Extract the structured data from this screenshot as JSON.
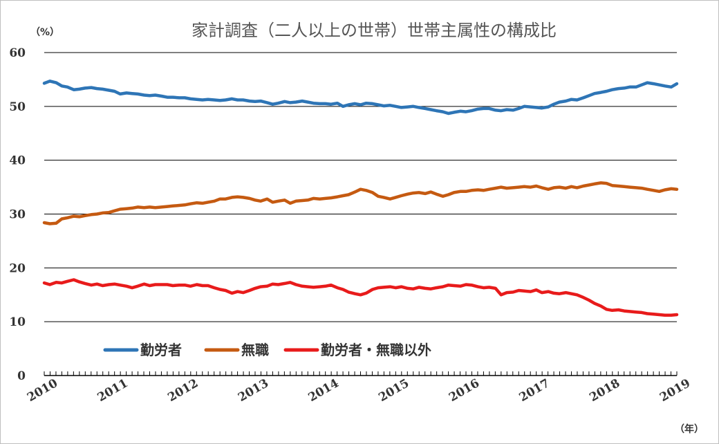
{
  "chart_data": {
    "type": "line",
    "title": "家計調査（二人以上の世帯）世帯主属性の構成比",
    "ylabel": "（%）",
    "xlabel": "（年）",
    "ylim": [
      0,
      60
    ],
    "yticks": [
      "0",
      "10",
      "20",
      "30",
      "40",
      "50",
      "60"
    ],
    "xlim": [
      2010,
      2019
    ],
    "xticks": [
      "2010",
      "2011",
      "2012",
      "2013",
      "2014",
      "2015",
      "2016",
      "2017",
      "2018",
      "2019"
    ],
    "grid": true,
    "legend_position": "bottom-left",
    "series": [
      {
        "name": "勤労者",
        "color": "#2E75B6",
        "x": [
          2010.0,
          2010.08,
          2010.17,
          2010.25,
          2010.33,
          2010.42,
          2010.5,
          2010.58,
          2010.67,
          2010.75,
          2010.83,
          2010.92,
          2011.0,
          2011.08,
          2011.17,
          2011.25,
          2011.33,
          2011.42,
          2011.5,
          2011.58,
          2011.67,
          2011.75,
          2011.83,
          2011.92,
          2012.0,
          2012.08,
          2012.17,
          2012.25,
          2012.33,
          2012.42,
          2012.5,
          2012.58,
          2012.67,
          2012.75,
          2012.83,
          2012.92,
          2013.0,
          2013.08,
          2013.17,
          2013.25,
          2013.33,
          2013.42,
          2013.5,
          2013.58,
          2013.67,
          2013.75,
          2013.83,
          2013.92,
          2014.0,
          2014.08,
          2014.17,
          2014.25,
          2014.33,
          2014.42,
          2014.5,
          2014.58,
          2014.67,
          2014.75,
          2014.83,
          2014.92,
          2015.0,
          2015.08,
          2015.17,
          2015.25,
          2015.33,
          2015.42,
          2015.5,
          2015.58,
          2015.67,
          2015.75,
          2015.83,
          2015.92,
          2016.0,
          2016.08,
          2016.17,
          2016.25,
          2016.33,
          2016.42,
          2016.5,
          2016.58,
          2016.67,
          2016.75,
          2016.83,
          2016.92,
          2017.0,
          2017.08,
          2017.17,
          2017.25,
          2017.33,
          2017.42,
          2017.5,
          2017.58,
          2017.67,
          2017.75,
          2017.83,
          2017.92,
          2018.0,
          2018.08,
          2018.17,
          2018.25,
          2018.33,
          2018.42,
          2018.5,
          2018.58,
          2018.67,
          2018.75,
          2018.83,
          2018.92,
          2019.0
        ],
        "values": [
          54.3,
          54.7,
          54.4,
          53.8,
          53.6,
          53.1,
          53.2,
          53.4,
          53.5,
          53.3,
          53.2,
          53.0,
          52.8,
          52.3,
          52.5,
          52.4,
          52.3,
          52.1,
          52.0,
          52.1,
          51.9,
          51.7,
          51.7,
          51.6,
          51.6,
          51.4,
          51.3,
          51.2,
          51.3,
          51.2,
          51.1,
          51.2,
          51.4,
          51.2,
          51.2,
          51.0,
          50.9,
          51.0,
          50.7,
          50.4,
          50.6,
          50.9,
          50.7,
          50.8,
          51.0,
          50.8,
          50.6,
          50.5,
          50.5,
          50.4,
          50.6,
          50.0,
          50.3,
          50.5,
          50.3,
          50.6,
          50.5,
          50.3,
          50.1,
          50.2,
          50.0,
          49.8,
          49.9,
          50.0,
          49.8,
          49.6,
          49.4,
          49.2,
          49.0,
          48.7,
          48.9,
          49.1,
          49.0,
          49.2,
          49.5,
          49.6,
          49.6,
          49.3,
          49.2,
          49.4,
          49.3,
          49.6,
          50.0,
          49.9,
          49.8,
          49.7,
          49.9,
          50.4,
          50.8,
          51.0,
          51.3,
          51.2,
          51.6,
          52.0,
          52.4,
          52.6,
          52.8,
          53.1,
          53.3,
          53.4,
          53.6,
          53.6,
          54.0,
          54.4,
          54.2,
          54.0,
          53.8,
          53.6,
          54.2
        ]
      },
      {
        "name": "無職",
        "color": "#C55A11",
        "x": [
          2010.0,
          2010.08,
          2010.17,
          2010.25,
          2010.33,
          2010.42,
          2010.5,
          2010.58,
          2010.67,
          2010.75,
          2010.83,
          2010.92,
          2011.0,
          2011.08,
          2011.17,
          2011.25,
          2011.33,
          2011.42,
          2011.5,
          2011.58,
          2011.67,
          2011.75,
          2011.83,
          2011.92,
          2012.0,
          2012.08,
          2012.17,
          2012.25,
          2012.33,
          2012.42,
          2012.5,
          2012.58,
          2012.67,
          2012.75,
          2012.83,
          2012.92,
          2013.0,
          2013.08,
          2013.17,
          2013.25,
          2013.33,
          2013.42,
          2013.5,
          2013.58,
          2013.67,
          2013.75,
          2013.83,
          2013.92,
          2014.0,
          2014.08,
          2014.17,
          2014.25,
          2014.33,
          2014.42,
          2014.5,
          2014.58,
          2014.67,
          2014.75,
          2014.83,
          2014.92,
          2015.0,
          2015.08,
          2015.17,
          2015.25,
          2015.33,
          2015.42,
          2015.5,
          2015.58,
          2015.67,
          2015.75,
          2015.83,
          2015.92,
          2016.0,
          2016.08,
          2016.17,
          2016.25,
          2016.33,
          2016.42,
          2016.5,
          2016.58,
          2016.67,
          2016.75,
          2016.83,
          2016.92,
          2017.0,
          2017.08,
          2017.17,
          2017.25,
          2017.33,
          2017.42,
          2017.5,
          2017.58,
          2017.67,
          2017.75,
          2017.83,
          2017.92,
          2018.0,
          2018.08,
          2018.17,
          2018.25,
          2018.33,
          2018.42,
          2018.5,
          2018.58,
          2018.67,
          2018.75,
          2018.83,
          2018.92,
          2019.0
        ],
        "values": [
          28.4,
          28.2,
          28.3,
          29.1,
          29.3,
          29.6,
          29.5,
          29.7,
          29.9,
          30.0,
          30.2,
          30.3,
          30.6,
          30.9,
          31.0,
          31.1,
          31.3,
          31.2,
          31.3,
          31.2,
          31.3,
          31.4,
          31.5,
          31.6,
          31.7,
          31.9,
          32.1,
          32.0,
          32.2,
          32.4,
          32.8,
          32.8,
          33.1,
          33.2,
          33.1,
          32.9,
          32.6,
          32.4,
          32.8,
          32.2,
          32.4,
          32.6,
          32.0,
          32.4,
          32.5,
          32.6,
          32.9,
          32.8,
          32.9,
          33.0,
          33.2,
          33.4,
          33.6,
          34.1,
          34.6,
          34.4,
          34.0,
          33.3,
          33.1,
          32.8,
          33.1,
          33.4,
          33.7,
          33.9,
          34.0,
          33.8,
          34.1,
          33.7,
          33.3,
          33.6,
          34.0,
          34.2,
          34.2,
          34.4,
          34.5,
          34.4,
          34.6,
          34.8,
          35.0,
          34.8,
          34.9,
          35.0,
          35.1,
          35.0,
          35.2,
          34.9,
          34.6,
          34.9,
          35.0,
          34.8,
          35.1,
          34.9,
          35.2,
          35.4,
          35.6,
          35.8,
          35.7,
          35.3,
          35.2,
          35.1,
          35.0,
          34.9,
          34.8,
          34.6,
          34.4,
          34.2,
          34.5,
          34.7,
          34.6
        ]
      },
      {
        "name": "勤労者・無職以外",
        "color": "#E81B1B",
        "x": [
          2010.0,
          2010.08,
          2010.17,
          2010.25,
          2010.33,
          2010.42,
          2010.5,
          2010.58,
          2010.67,
          2010.75,
          2010.83,
          2010.92,
          2011.0,
          2011.08,
          2011.17,
          2011.25,
          2011.33,
          2011.42,
          2011.5,
          2011.58,
          2011.67,
          2011.75,
          2011.83,
          2011.92,
          2012.0,
          2012.08,
          2012.17,
          2012.25,
          2012.33,
          2012.42,
          2012.5,
          2012.58,
          2012.67,
          2012.75,
          2012.83,
          2012.92,
          2013.0,
          2013.08,
          2013.17,
          2013.25,
          2013.33,
          2013.42,
          2013.5,
          2013.58,
          2013.67,
          2013.75,
          2013.83,
          2013.92,
          2014.0,
          2014.08,
          2014.17,
          2014.25,
          2014.33,
          2014.42,
          2014.5,
          2014.58,
          2014.67,
          2014.75,
          2014.83,
          2014.92,
          2015.0,
          2015.08,
          2015.17,
          2015.25,
          2015.33,
          2015.42,
          2015.5,
          2015.58,
          2015.67,
          2015.75,
          2015.83,
          2015.92,
          2016.0,
          2016.08,
          2016.17,
          2016.25,
          2016.33,
          2016.42,
          2016.5,
          2016.58,
          2016.67,
          2016.75,
          2016.83,
          2016.92,
          2017.0,
          2017.08,
          2017.17,
          2017.25,
          2017.33,
          2017.42,
          2017.5,
          2017.58,
          2017.67,
          2017.75,
          2017.83,
          2017.92,
          2018.0,
          2018.08,
          2018.17,
          2018.25,
          2018.33,
          2018.42,
          2018.5,
          2018.58,
          2018.67,
          2018.75,
          2018.83,
          2018.92,
          2019.0
        ],
        "values": [
          17.2,
          16.9,
          17.3,
          17.2,
          17.5,
          17.8,
          17.4,
          17.1,
          16.8,
          17.0,
          16.7,
          16.9,
          17.0,
          16.8,
          16.6,
          16.3,
          16.6,
          17.0,
          16.7,
          16.9,
          16.9,
          16.9,
          16.7,
          16.8,
          16.8,
          16.6,
          16.9,
          16.7,
          16.7,
          16.3,
          16.0,
          15.8,
          15.3,
          15.6,
          15.4,
          15.8,
          16.2,
          16.5,
          16.6,
          17.0,
          16.9,
          17.1,
          17.3,
          16.9,
          16.6,
          16.5,
          16.4,
          16.5,
          16.6,
          16.8,
          16.3,
          16.0,
          15.5,
          15.2,
          15.0,
          15.3,
          16.0,
          16.3,
          16.4,
          16.5,
          16.3,
          16.5,
          16.2,
          16.1,
          16.4,
          16.2,
          16.1,
          16.3,
          16.5,
          16.8,
          16.7,
          16.6,
          16.9,
          16.8,
          16.5,
          16.3,
          16.4,
          16.2,
          15.0,
          15.4,
          15.5,
          15.8,
          15.7,
          15.6,
          15.9,
          15.4,
          15.6,
          15.3,
          15.2,
          15.4,
          15.2,
          15.0,
          14.5,
          14.0,
          13.4,
          12.9,
          12.3,
          12.1,
          12.2,
          12.0,
          11.9,
          11.8,
          11.7,
          11.5,
          11.4,
          11.3,
          11.2,
          11.2,
          11.3
        ]
      }
    ]
  }
}
